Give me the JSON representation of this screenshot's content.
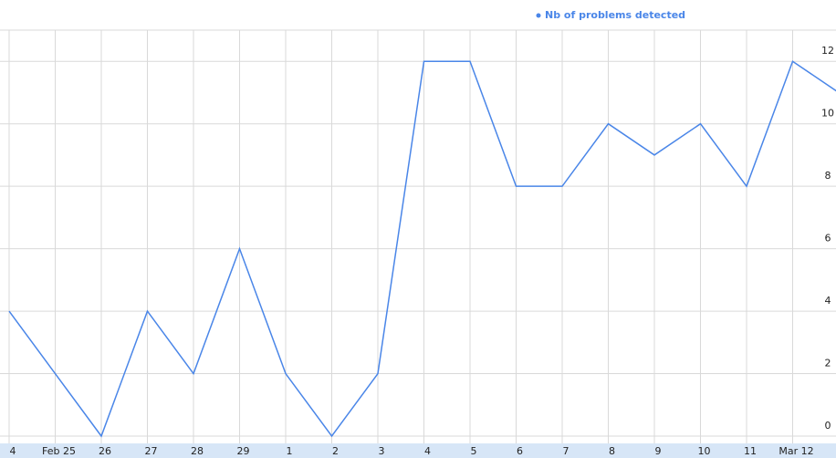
{
  "chart_data": {
    "type": "line",
    "categories": [
      "4",
      "Feb 25",
      "26",
      "27",
      "28",
      "29",
      "1",
      "2",
      "3",
      "4",
      "5",
      "6",
      "7",
      "8",
      "9",
      "10",
      "11",
      "Mar 12",
      null
    ],
    "series": [
      {
        "name": "Nb of problems detected",
        "color": "#4a86e8",
        "values": [
          4,
          2,
          0,
          4,
          2,
          6,
          2,
          0,
          2,
          12,
          12,
          8,
          8,
          10,
          9,
          10,
          8,
          12,
          11
        ]
      }
    ],
    "ylim": [
      0,
      13
    ],
    "yticks": [
      0,
      2,
      4,
      6,
      8,
      10,
      12
    ],
    "grid": true,
    "legend": "top"
  }
}
